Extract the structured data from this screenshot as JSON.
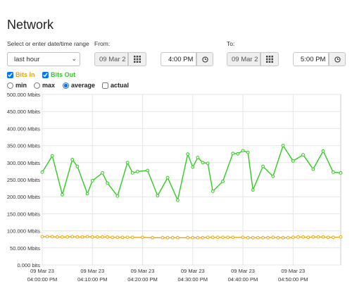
{
  "page_title": "Network",
  "range_label": "Select or enter date/time range",
  "range_value": "last hour",
  "from_label": "From:",
  "to_label": "To:",
  "from_date": "09 Mar 2",
  "from_time": "4:00 PM",
  "to_date": "09 Mar 2",
  "to_time": "5:00 PM",
  "icons": {
    "calendar": "calendar-grid-icon",
    "clock": "clock-icon",
    "chevron": "chevron-down-icon"
  },
  "series_toggles": [
    {
      "label": "Bits In",
      "checked": true,
      "color": "#f0a30a"
    },
    {
      "label": "Bits Out",
      "checked": true,
      "color": "#2ecc1f"
    }
  ],
  "aggregation": {
    "options": [
      {
        "label": "min",
        "type": "radio",
        "checked": false
      },
      {
        "label": "max",
        "type": "radio",
        "checked": false
      },
      {
        "label": "average",
        "type": "radio",
        "checked": true
      },
      {
        "label": "actual",
        "type": "checkbox",
        "checked": false
      }
    ]
  },
  "chart_data": {
    "type": "line",
    "y_ticks": [
      "0.000 bits",
      "50.000 Mbits",
      "100.000 Mbits",
      "150.000 Mbits",
      "200.000 Mbits",
      "250.000 Mbits",
      "300.000 Mbits",
      "350.000 Mbits",
      "400.000 Mbits",
      "450.000 Mbits",
      "500.000 Mbits"
    ],
    "ylim": [
      0,
      500
    ],
    "xlim": [
      0,
      59.5
    ],
    "x_ticks": [
      {
        "x": 0,
        "date": "09 Mar 23",
        "time": "04:00:00 PM"
      },
      {
        "x": 10,
        "date": "09 Mar 23",
        "time": "04:10:00 PM"
      },
      {
        "x": 20,
        "date": "09 Mar 23",
        "time": "04:20:00 PM"
      },
      {
        "x": 30,
        "date": "09 Mar 23",
        "time": "04:30:00 PM"
      },
      {
        "x": 40,
        "date": "09 Mar 23",
        "time": "04:40:00 PM"
      },
      {
        "x": 50,
        "date": "09 Mar 23",
        "time": "04:50:00 PM"
      }
    ],
    "grid": true,
    "series": [
      {
        "name": "Bits Out",
        "color": "#2ecc1f",
        "x": [
          0,
          2,
          4,
          6,
          7,
          9,
          10,
          12,
          13,
          15,
          17,
          18,
          19,
          21,
          23,
          25,
          27,
          29,
          30,
          31,
          32,
          33,
          34,
          36,
          38,
          39,
          40,
          41,
          42,
          44,
          46,
          48,
          50,
          52,
          54,
          56,
          58,
          59.5
        ],
        "values": [
          272,
          320,
          206,
          309,
          289,
          209,
          247,
          270,
          240,
          202,
          300,
          270,
          274,
          277,
          203,
          256,
          190,
          325,
          287,
          315,
          300,
          298,
          216,
          245,
          327,
          326,
          335,
          330,
          220,
          289,
          260,
          350,
          305,
          323,
          281,
          334,
          272,
          270
        ]
      },
      {
        "name": "Bits In",
        "color": "#f0a30a",
        "x": [
          0,
          1,
          2,
          3,
          4,
          5,
          6,
          7,
          8,
          9,
          10,
          11,
          12,
          13,
          14,
          15,
          16,
          17,
          18,
          20,
          22,
          24,
          25,
          26,
          27,
          29,
          30,
          31,
          32,
          33,
          34,
          35,
          36,
          37,
          38,
          40,
          41,
          42,
          43,
          44,
          45,
          46,
          47,
          48,
          49,
          50,
          51,
          52,
          53,
          54,
          55,
          56,
          57,
          58,
          59.5
        ],
        "values": [
          83,
          83,
          83,
          82,
          82,
          82,
          83,
          82,
          82,
          83,
          82,
          82,
          82,
          82,
          81,
          81,
          81,
          81,
          81,
          81,
          80,
          80,
          80,
          80,
          80,
          80,
          80,
          80,
          80,
          81,
          81,
          81,
          81,
          81,
          81,
          81,
          80,
          80,
          80,
          80,
          80,
          81,
          80,
          80,
          80,
          81,
          82,
          82,
          81,
          82,
          82,
          82,
          81,
          81,
          82
        ]
      }
    ]
  }
}
